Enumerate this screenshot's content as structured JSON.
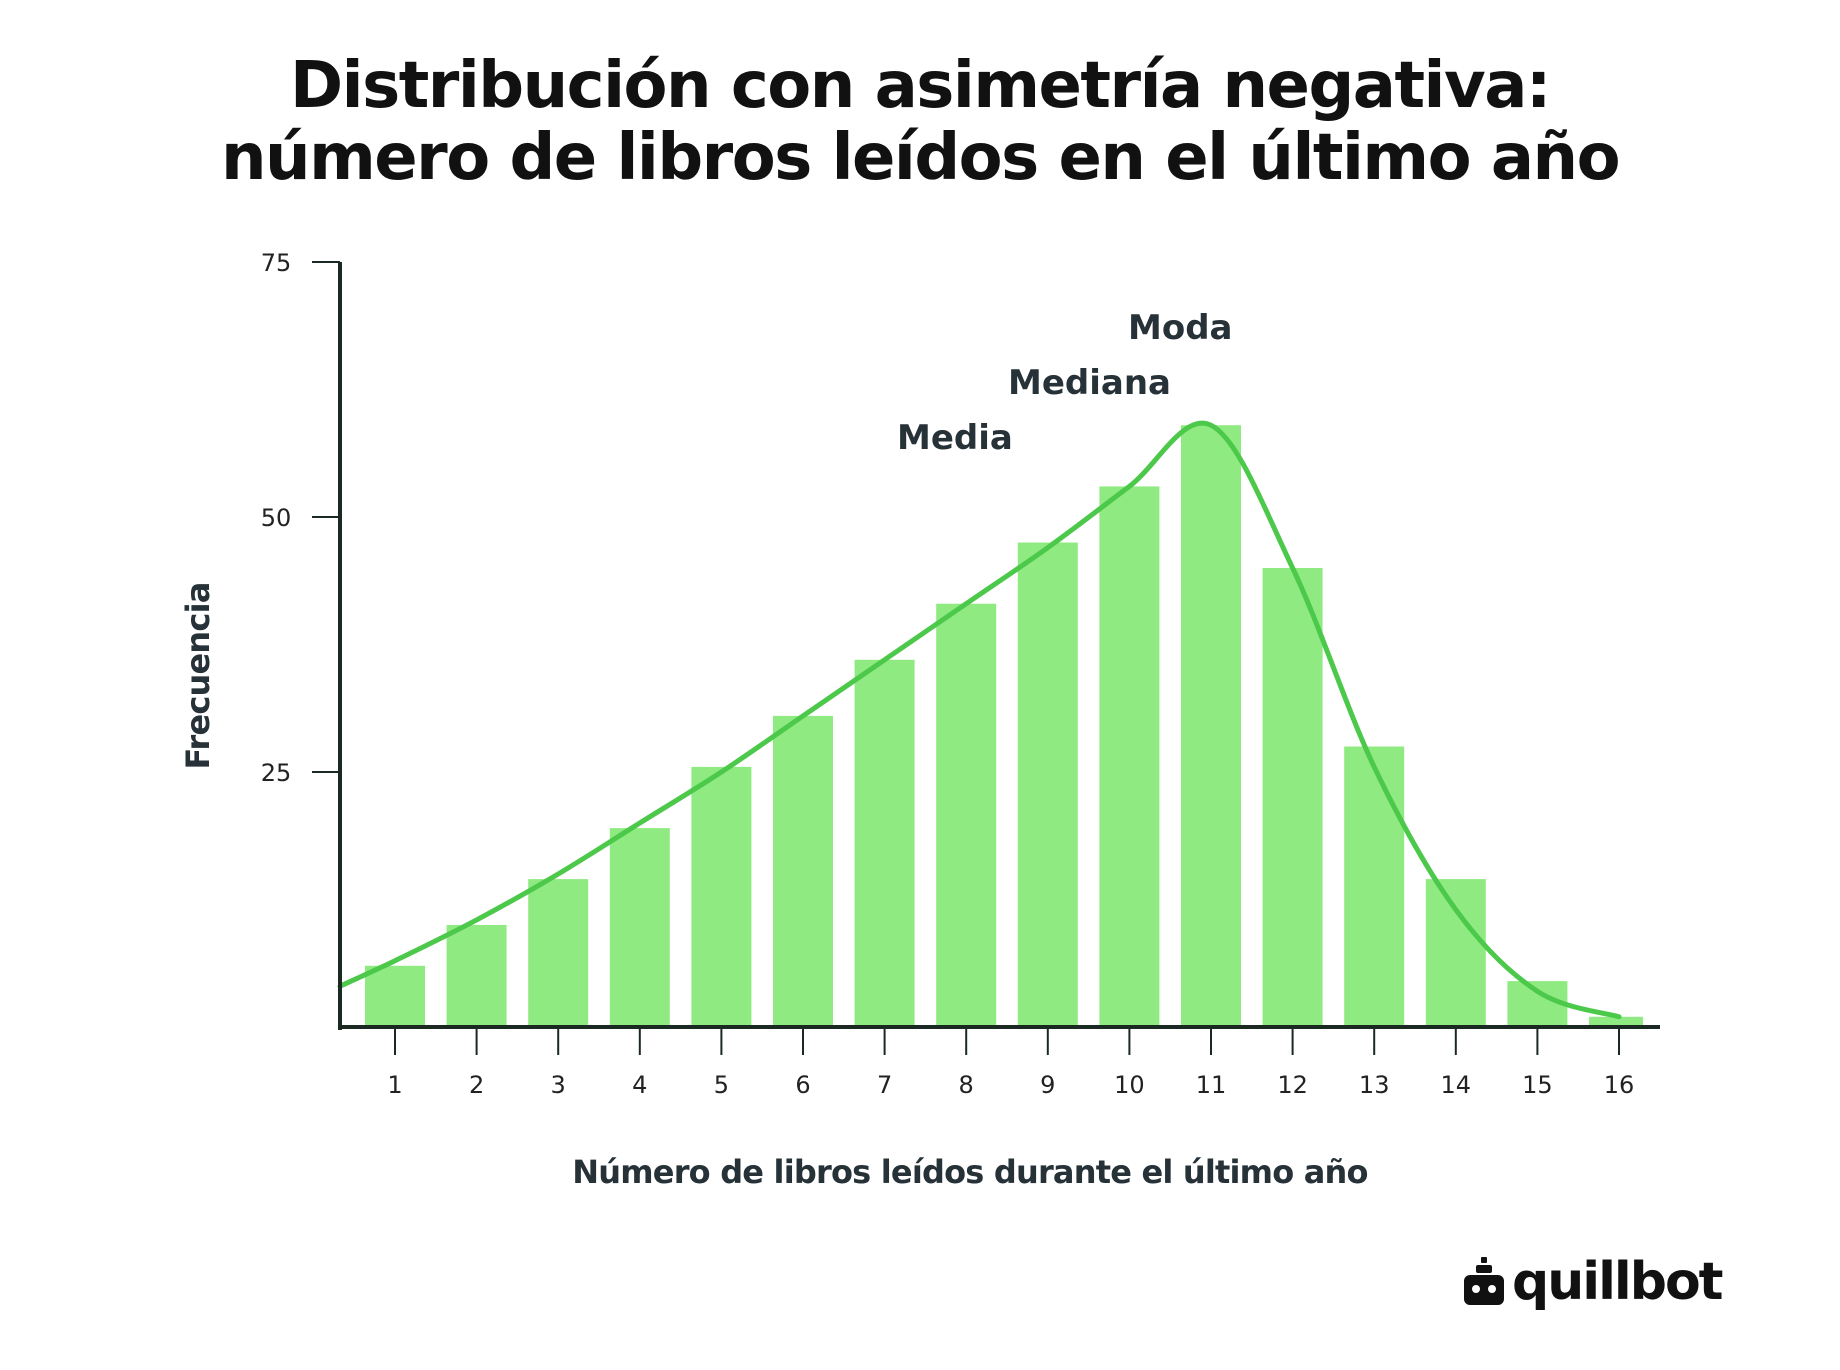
{
  "title": {
    "line1": "Distribución con asimetría negativa:",
    "line2": "número de libros leídos en el último año"
  },
  "colors": {
    "bar": "#90EA82",
    "curve": "#4CC84A",
    "axis": "#1a2a22",
    "text": "#263238"
  },
  "chart_data": {
    "type": "bar",
    "categories": [
      "1",
      "2",
      "3",
      "4",
      "5",
      "6",
      "7",
      "8",
      "9",
      "10",
      "11",
      "12",
      "13",
      "14",
      "15",
      "16"
    ],
    "values": [
      6,
      10,
      14.5,
      19.5,
      25.5,
      30.5,
      36,
      41.5,
      47.5,
      53,
      59,
      45,
      27.5,
      14.5,
      4.5,
      1
    ],
    "curve": [
      6.5,
      10.5,
      15,
      20,
      25,
      30.5,
      36,
      41.5,
      47,
      53,
      59,
      45,
      25.5,
      11.5,
      3.5,
      1
    ],
    "xlabel": "Número de libros leídos durante el último año",
    "ylabel": "Frecuencia",
    "ylim": [
      0,
      75
    ],
    "yticks": [
      "25",
      "50",
      "75"
    ],
    "grid": false,
    "annotations": {
      "mean": "Media",
      "median": "Mediana",
      "mode": "Moda"
    }
  },
  "brand": {
    "name": "quillbot",
    "icon": "robot-icon"
  }
}
